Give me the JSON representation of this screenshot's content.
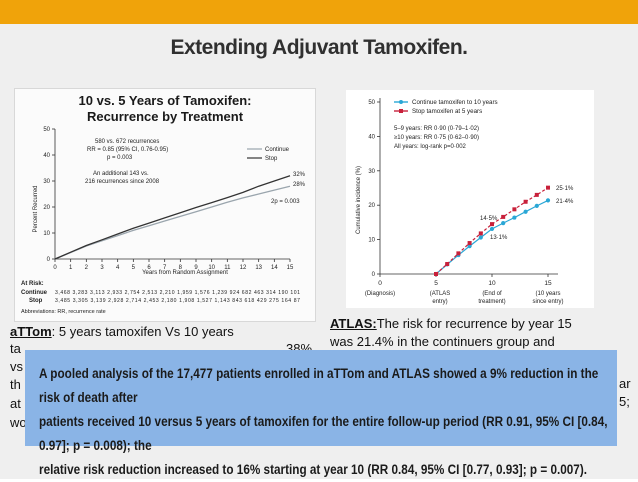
{
  "slide": {
    "title": "Extending Adjuvant Tamoxifen.",
    "accent": "#f0a30a"
  },
  "left_chart": {
    "title_line1": "10 vs. 5 Years of Tamoxifen:",
    "title_line2": "Recurrence by Treatment",
    "annotation1": "580 vs. 672 recurrences",
    "annotation2": "RR = 0.85 (95% CI, 0.76-0.95)",
    "annotation3": "p = 0.003",
    "annotation4": "An additional 143 vs.",
    "annotation5": "216 recurrences since 2008",
    "legend_continue": "Continue",
    "legend_stop": "Stop",
    "ylabel": "Percent Recurred",
    "xlabel": "Years from Random Assignment",
    "end_label_stop": "32%",
    "end_label_continue": "28%",
    "end_label_diff": "2p = 0.003",
    "at_risk_label": "At Risk:",
    "continue_row_label": "Continue",
    "stop_row_label": "Stop",
    "continue_row": "3,468 3,283 3,113 2,933 2,754 2,513 2,210 1,959 1,576 1,239  924   682  463  314  190  101",
    "stop_row": "3,485 3,305 3,139 2,928 2,714 2,453 2,180 1,908 1,527 1,143  843   618  429  275  164   87",
    "abbrev": "Abbreviations: RR, recurrence rate"
  },
  "right_chart": {
    "legend_continue": "Continue tamoxifen to 10 years",
    "legend_stop": "Stop tamoxifen at 5 years",
    "stat1": "5–9 years: RR 0·90 (0·79–1·02)",
    "stat2": "≥10 years: RR 0·75 (0·62–0·90)",
    "stat3": "All years: log-rank p=0·002",
    "ylabel": "Cumulative incidence (%)",
    "label_stop_end": "25·1%",
    "label_cont_end": "21·4%",
    "label_stop_10": "14·5%",
    "label_cont_10": "13·1%",
    "xtick_0": "0",
    "xtick_0_sub": "(Diagnosis)",
    "xtick_5": "5",
    "xtick_5_sub1": "(ATLAS",
    "xtick_5_sub2": "entry)",
    "xtick_10": "10",
    "xtick_10_sub1": "(End of",
    "xtick_10_sub2": "treatment)",
    "xtick_15": "15",
    "xtick_15_sub1": "(10 years",
    "xtick_15_sub2": "since entry)",
    "continue_color": "#2aa7d6",
    "stop_color": "#c8203a"
  },
  "notes": {
    "left_head": "aTTom",
    "left_line1": ": 5 years tamoxifen Vs 10 years",
    "left_line2_frag": "ta",
    "left_line2_end": "38%",
    "left_line3_frag": "vs",
    "left_line4_frag": "th",
    "left_line5_frag": "at",
    "left_line6_frag": "wo",
    "right_head": "ATLAS:",
    "right_line1": "The risk for recurrence by year 15",
    "right_line2": "was 21.4% in the continuers group and",
    "right_frag_ar": "ar",
    "right_frag_semicolon": "5;"
  },
  "pooled": {
    "line1": "A pooled analysis of the 17,477 patients enrolled in aTTom and ATLAS showed a 9% reduction in the risk of death after",
    "line2": "patients received 10 versus 5 years of tamoxifen for the entire follow-up period (RR 0.91, 95% CI [0.84, 0.97]; p = 0.008); the",
    "line3": "relative risk reduction increased to 16% starting at year 10 (RR 0.84, 95% CI [0.77, 0.93]; p = 0.007)."
  },
  "chart_data": [
    {
      "type": "line",
      "title": "10 vs. 5 Years of Tamoxifen: Recurrence by Treatment",
      "xlabel": "Years from Random Assignment",
      "ylabel": "Percent Recurred",
      "xlim": [
        0,
        15
      ],
      "ylim": [
        0,
        50
      ],
      "x": [
        0,
        1,
        2,
        3,
        4,
        5,
        6,
        7,
        8,
        9,
        10,
        11,
        12,
        13,
        14,
        15
      ],
      "series": [
        {
          "name": "Continue",
          "values": [
            0,
            2.5,
            5,
            7,
            9,
            11,
            12.8,
            14.6,
            16.4,
            18.2,
            20,
            21.8,
            23.5,
            25,
            26.5,
            28
          ]
        },
        {
          "name": "Stop",
          "values": [
            0,
            2.6,
            5.2,
            7.4,
            9.6,
            11.8,
            13.8,
            15.8,
            17.8,
            19.8,
            21.7,
            23.6,
            25.6,
            28,
            30,
            32
          ]
        }
      ],
      "legend": "right"
    },
    {
      "type": "line",
      "ylabel": "Cumulative incidence (%)",
      "xlim": [
        0,
        15
      ],
      "ylim": [
        0,
        50
      ],
      "x": [
        5,
        6,
        7,
        8,
        9,
        10,
        11,
        12,
        13,
        14,
        15
      ],
      "series": [
        {
          "name": "Continue tamoxifen to 10 years",
          "values": [
            0,
            2.8,
            5.5,
            8.1,
            10.6,
            13.1,
            14.8,
            16.4,
            18.1,
            19.8,
            21.4
          ]
        },
        {
          "name": "Stop tamoxifen at 5 years",
          "values": [
            0,
            2.9,
            6.0,
            9.0,
            11.8,
            14.5,
            16.6,
            18.8,
            21.0,
            23.0,
            25.1
          ]
        }
      ],
      "legend": "top-left"
    }
  ]
}
